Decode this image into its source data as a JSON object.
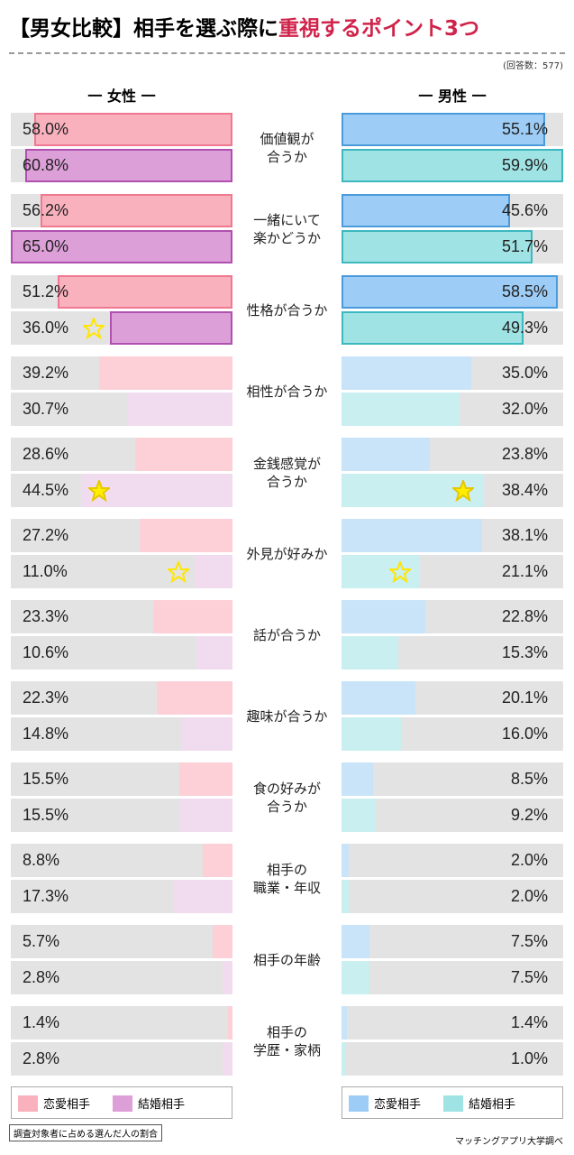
{
  "chart_data": {
    "type": "bar",
    "title": "【男女比較】相手を選ぶ際に",
    "title_highlight": "重視するポイント3つ",
    "title_highlight_color": "#d0234a",
    "note": "(回答数：577)",
    "categories": [
      "価値観が\n合うか",
      "一緒にいて\n楽かどうか",
      "性格が合うか",
      "相性が合うか",
      "金銭感覚が\n合うか",
      "外見が好みか",
      "話が合うか",
      "趣味が合うか",
      "食の好みが\n合うか",
      "相手の\n職業・年収",
      "相手の年齢",
      "相手の\n学歴・家柄"
    ],
    "highlight": [
      0,
      1,
      2
    ],
    "panels": [
      {
        "title": "一 女性 一",
        "side": "left",
        "xlim": [
          0,
          65
        ],
        "series": [
          {
            "name": "恋愛相手",
            "color": "#f9b1be",
            "border_color": "#f07890",
            "light_color": "#fdd0d8",
            "values": [
              58.0,
              56.2,
              51.2,
              39.2,
              28.6,
              27.2,
              23.3,
              22.3,
              15.5,
              8.8,
              5.7,
              1.4
            ],
            "value_labels": [
              "58.0%",
              "56.2%",
              "51.2%",
              "39.2%",
              "28.6%",
              "27.2%",
              "23.3%",
              "22.3%",
              "15.5%",
              "8.8%",
              "5.7%",
              "1.4%"
            ]
          },
          {
            "name": "結婚相手",
            "color": "#dd9fd8",
            "border_color": "#b050b0",
            "light_color": "#f1dcef",
            "values": [
              60.8,
              65.0,
              36.0,
              30.7,
              44.5,
              11.0,
              10.6,
              14.8,
              15.5,
              17.3,
              2.8,
              2.8
            ],
            "value_labels": [
              "60.8%",
              "65.0%",
              "36.0%",
              "30.7%",
              "44.5%",
              "11.0%",
              "10.6%",
              "14.8%",
              "15.5%",
              "17.3%",
              "2.8%",
              "2.8%"
            ],
            "stars_filled": [
              4
            ],
            "stars_outline": [
              2,
              5
            ]
          }
        ]
      },
      {
        "title": "一 男性 一",
        "side": "right",
        "xlim": [
          0,
          60
        ],
        "series": [
          {
            "name": "恋愛相手",
            "color": "#9dcdf6",
            "border_color": "#4b9bdb",
            "light_color": "#c9e4f8",
            "values": [
              55.1,
              45.6,
              58.5,
              35.0,
              23.8,
              38.1,
              22.8,
              20.1,
              8.5,
              2.0,
              7.5,
              1.4
            ],
            "value_labels": [
              "55.1%",
              "45.6%",
              "58.5%",
              "35.0%",
              "23.8%",
              "38.1%",
              "22.8%",
              "20.1%",
              "8.5%",
              "2.0%",
              "7.5%",
              "1.4%"
            ]
          },
          {
            "name": "結婚相手",
            "color": "#9fe3e5",
            "border_color": "#3db8bf",
            "light_color": "#c9eff0",
            "values": [
              59.9,
              51.7,
              49.3,
              32.0,
              38.4,
              21.1,
              15.3,
              16.0,
              9.2,
              2.0,
              7.5,
              1.0
            ],
            "value_labels": [
              "59.9%",
              "51.7%",
              "49.3%",
              "32.0%",
              "38.4%",
              "21.1%",
              "15.3%",
              "16.0%",
              "9.2%",
              "2.0%",
              "7.5%",
              "1.0%"
            ],
            "stars_filled": [
              4
            ],
            "stars_outline": [
              5
            ]
          }
        ]
      }
    ],
    "footnote": "調査対象者に占める選んだ人の割合",
    "source": "マッチングアプリ大学調べ"
  }
}
